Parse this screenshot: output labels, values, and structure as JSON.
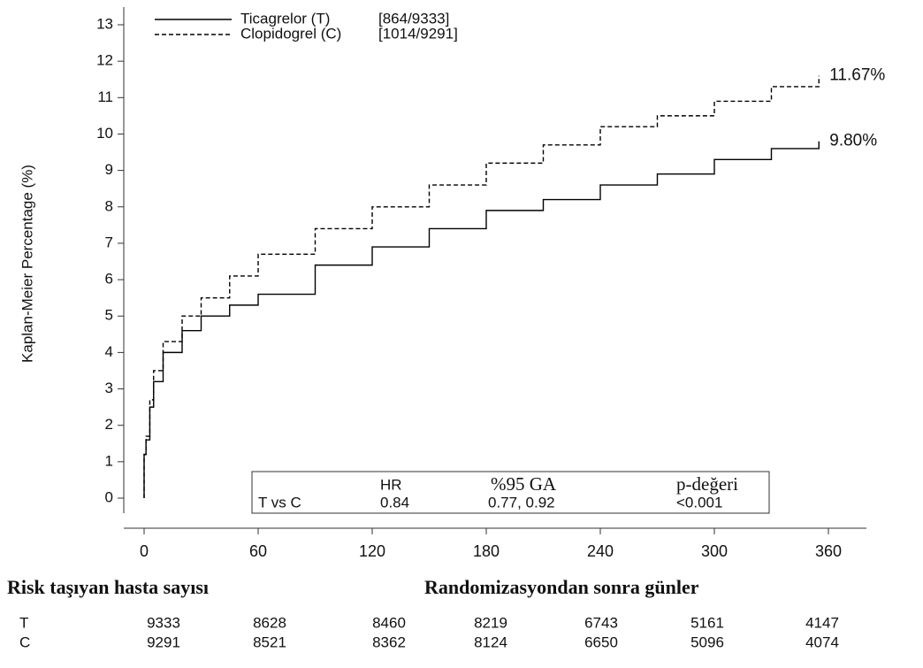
{
  "chart_data": {
    "type": "line",
    "y_label": "Kaplan-Meier Percentage (%)",
    "x_label": "Randomizasyondan sonra günler",
    "xlim": [
      -10,
      380
    ],
    "ylim": [
      -0.8,
      13.5
    ],
    "xticks": [
      0,
      60,
      120,
      180,
      240,
      300,
      360
    ],
    "yticks": [
      0,
      1,
      2,
      3,
      4,
      5,
      6,
      7,
      8,
      9,
      10,
      11,
      12,
      13
    ],
    "series": [
      {
        "name": "Ticagrelor (T)",
        "events": "[864/9333]",
        "color": "#000000",
        "line_style": "solid",
        "end_label": "9.80%",
        "x": [
          0,
          0,
          1,
          3,
          5,
          10,
          20,
          30,
          45,
          60,
          90,
          120,
          150,
          180,
          210,
          240,
          270,
          300,
          330,
          355
        ],
        "values": [
          0,
          1.2,
          1.6,
          2.5,
          3.2,
          4.0,
          4.6,
          5.0,
          5.3,
          5.6,
          6.4,
          6.9,
          7.4,
          7.9,
          8.2,
          8.6,
          8.9,
          9.3,
          9.6,
          9.8
        ]
      },
      {
        "name": "Clopidogrel (C)",
        "events": "[1014/9291]",
        "color": "#000000",
        "line_style": "dashed",
        "end_label": "11.67%",
        "x": [
          0,
          0,
          1,
          3,
          5,
          10,
          20,
          30,
          45,
          60,
          90,
          120,
          150,
          180,
          210,
          240,
          270,
          300,
          330,
          355
        ],
        "values": [
          0,
          1.2,
          1.7,
          2.7,
          3.5,
          4.3,
          5.0,
          5.5,
          6.1,
          6.7,
          7.4,
          8.0,
          8.6,
          9.2,
          9.7,
          10.2,
          10.5,
          10.9,
          11.3,
          11.6
        ]
      }
    ]
  },
  "hr_table": {
    "header": [
      "HR",
      "%95 GA",
      "p-değeri"
    ],
    "row": [
      "T vs C",
      "0.84",
      "0.77, 0.92",
      "<0.001"
    ]
  },
  "at_risk": {
    "title": "Risk taşıyan hasta sayısı",
    "rows": [
      [
        "T",
        "9333",
        "8628",
        "8460",
        "8219",
        "6743",
        "5161",
        "4147"
      ],
      [
        "C",
        "9291",
        "8521",
        "8362",
        "8124",
        "6650",
        "5096",
        "4074"
      ]
    ]
  }
}
